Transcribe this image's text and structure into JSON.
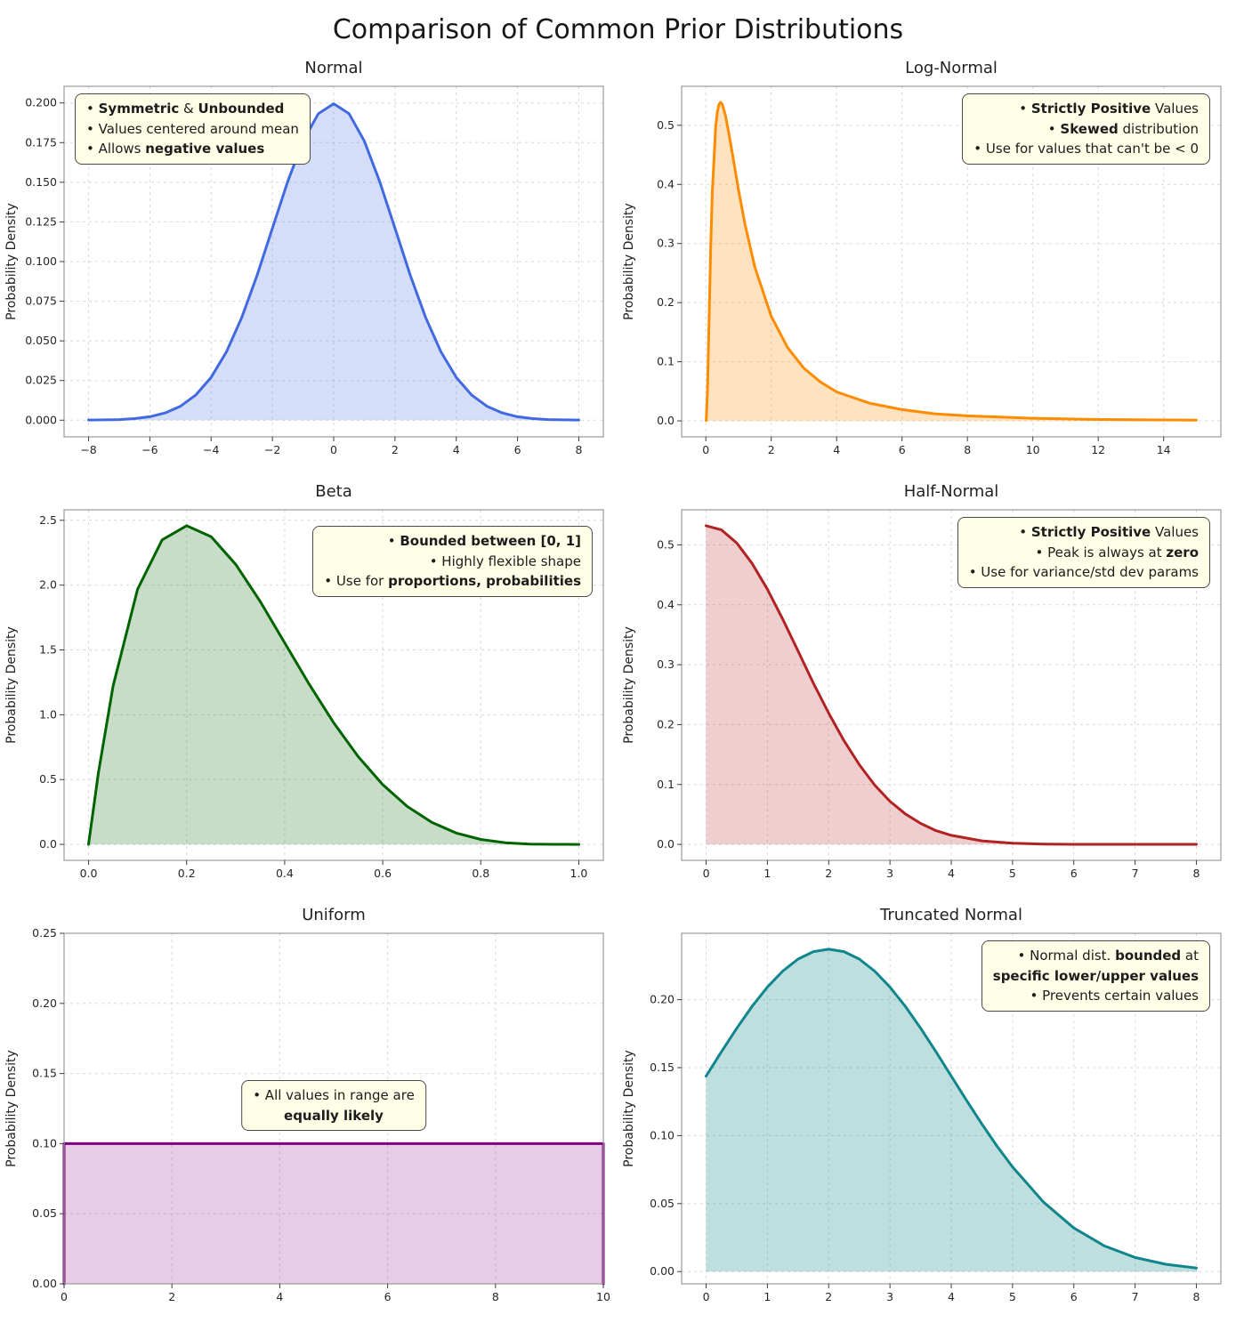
{
  "page": {
    "title": "Comparison of Common Prior Distributions"
  },
  "chart_data": [
    {
      "id": "normal",
      "type": "area",
      "title": "Normal",
      "ylabel": "Probability Density",
      "line_color": "#4169e1",
      "fill_color": "rgba(65,105,225,0.22)",
      "line_width": 3,
      "xlim": [
        -8.8,
        8.8
      ],
      "ylim": [
        -0.0105,
        0.2105
      ],
      "xticks": [
        -8,
        -6,
        -4,
        -2,
        0,
        2,
        4,
        6,
        8
      ],
      "xtick_labels": [
        "−8",
        "−6",
        "−4",
        "−2",
        "0",
        "2",
        "4",
        "6",
        "8"
      ],
      "yticks": [
        0,
        0.025,
        0.05,
        0.075,
        0.1,
        0.125,
        0.15,
        0.175,
        0.2
      ],
      "ytick_labels": [
        "0.000",
        "0.025",
        "0.050",
        "0.075",
        "0.100",
        "0.125",
        "0.150",
        "0.175",
        "0.200"
      ],
      "x": [
        -8,
        -7.5,
        -7,
        -6.5,
        -6,
        -5.5,
        -5,
        -4.5,
        -4,
        -3.5,
        -3,
        -2.5,
        -2,
        -1.5,
        -1,
        -0.5,
        0,
        0.5,
        1,
        1.5,
        2,
        2.5,
        3,
        3.5,
        4,
        4.5,
        5,
        5.5,
        6,
        6.5,
        7,
        7.5,
        8
      ],
      "y": [
        0.0001,
        0.0002,
        0.0004,
        0.001,
        0.0022,
        0.0046,
        0.0088,
        0.0159,
        0.027,
        0.0431,
        0.0648,
        0.0913,
        0.121,
        0.1506,
        0.176,
        0.1933,
        0.1995,
        0.1933,
        0.176,
        0.1506,
        0.121,
        0.0913,
        0.0648,
        0.0431,
        0.027,
        0.0159,
        0.0088,
        0.0046,
        0.0022,
        0.001,
        0.0004,
        0.0002,
        0.0001
      ],
      "annotation": {
        "pos": "top-left",
        "align": "left",
        "lines": [
          [
            {
              "t": "• "
            },
            {
              "t": "Symmetric",
              "b": true
            },
            {
              "t": " & "
            },
            {
              "t": "Unbounded",
              "b": true
            }
          ],
          [
            {
              "t": "• Values centered around mean"
            }
          ],
          [
            {
              "t": "• Allows "
            },
            {
              "t": "negative values",
              "b": true
            }
          ]
        ]
      }
    },
    {
      "id": "lognormal",
      "type": "area",
      "title": "Log-Normal",
      "ylabel": "Probability Density",
      "line_color": "#ff8c00",
      "fill_color": "rgba(255,140,0,0.25)",
      "line_width": 3,
      "xlim": [
        -0.74,
        15.75
      ],
      "ylim": [
        -0.027,
        0.566
      ],
      "xticks": [
        0,
        2,
        4,
        6,
        8,
        10,
        12,
        14
      ],
      "xtick_labels": [
        "0",
        "2",
        "4",
        "6",
        "8",
        "10",
        "12",
        "14"
      ],
      "yticks": [
        0,
        0.1,
        0.2,
        0.3,
        0.4,
        0.5
      ],
      "ytick_labels": [
        "0.0",
        "0.1",
        "0.2",
        "0.3",
        "0.4",
        "0.5"
      ],
      "x": [
        0.01,
        0.05,
        0.1,
        0.15,
        0.2,
        0.3,
        0.35,
        0.4,
        0.45,
        0.5,
        0.6,
        0.7,
        0.8,
        1,
        1.2,
        1.5,
        2,
        2.5,
        3,
        3.5,
        4,
        5,
        6,
        7,
        8,
        10,
        12,
        15
      ],
      "y": [
        0.0006,
        0.048,
        0.174,
        0.295,
        0.388,
        0.496,
        0.522,
        0.535,
        0.539,
        0.536,
        0.517,
        0.488,
        0.456,
        0.391,
        0.332,
        0.26,
        0.177,
        0.124,
        0.089,
        0.066,
        0.049,
        0.03,
        0.019,
        0.012,
        0.0085,
        0.0044,
        0.0024,
        0.0012
      ],
      "annotation": {
        "pos": "top-right",
        "align": "right",
        "lines": [
          [
            {
              "t": "• "
            },
            {
              "t": "Strictly Positive",
              "b": true
            },
            {
              "t": " Values"
            }
          ],
          [
            {
              "t": "• "
            },
            {
              "t": "Skewed",
              "b": true
            },
            {
              "t": " distribution"
            }
          ],
          [
            {
              "t": "• Use for values that can't be < 0"
            }
          ]
        ]
      }
    },
    {
      "id": "beta",
      "type": "area",
      "title": "Beta",
      "ylabel": "Probability Density",
      "line_color": "#006400",
      "fill_color": "rgba(0,100,0,0.22)",
      "line_width": 3,
      "xlim": [
        -0.05,
        1.05
      ],
      "ylim": [
        -0.123,
        2.581
      ],
      "xticks": [
        0,
        0.2,
        0.4,
        0.6,
        0.8,
        1
      ],
      "xtick_labels": [
        "0.0",
        "0.2",
        "0.4",
        "0.6",
        "0.8",
        "1.0"
      ],
      "yticks": [
        0,
        0.5,
        1,
        1.5,
        2,
        2.5
      ],
      "ytick_labels": [
        "0.0",
        "0.5",
        "1.0",
        "1.5",
        "2.0",
        "2.5"
      ],
      "x": [
        0,
        0.02,
        0.05,
        0.1,
        0.15,
        0.2,
        0.25,
        0.3,
        0.35,
        0.4,
        0.45,
        0.5,
        0.55,
        0.6,
        0.65,
        0.7,
        0.75,
        0.8,
        0.85,
        0.9,
        0.95,
        1
      ],
      "y": [
        0,
        0.553,
        1.222,
        1.968,
        2.349,
        2.458,
        2.373,
        2.161,
        1.874,
        1.555,
        1.235,
        0.938,
        0.677,
        0.461,
        0.293,
        0.17,
        0.088,
        0.038,
        0.013,
        0.0027,
        0.0002,
        0
      ],
      "annotation": {
        "pos": "top-right",
        "align": "right",
        "dy": 10,
        "lines": [
          [
            {
              "t": "• "
            },
            {
              "t": "Bounded between [0, 1]",
              "b": true
            }
          ],
          [
            {
              "t": "• Highly flexible shape"
            }
          ],
          [
            {
              "t": "• Use for "
            },
            {
              "t": "proportions, probabilities",
              "b": true
            }
          ]
        ]
      }
    },
    {
      "id": "halfnormal",
      "type": "area",
      "title": "Half-Normal",
      "ylabel": "Probability Density",
      "line_color": "#b22222",
      "fill_color": "rgba(178,34,34,0.22)",
      "line_width": 3,
      "xlim": [
        -0.4,
        8.4
      ],
      "ylim": [
        -0.0266,
        0.5586
      ],
      "xticks": [
        0,
        1,
        2,
        3,
        4,
        5,
        6,
        7,
        8
      ],
      "xtick_labels": [
        "0",
        "1",
        "2",
        "3",
        "4",
        "5",
        "6",
        "7",
        "8"
      ],
      "yticks": [
        0,
        0.1,
        0.2,
        0.3,
        0.4,
        0.5
      ],
      "ytick_labels": [
        "0.0",
        "0.1",
        "0.2",
        "0.3",
        "0.4",
        "0.5"
      ],
      "x": [
        0,
        0.25,
        0.5,
        0.75,
        1,
        1.25,
        1.5,
        1.75,
        2,
        2.25,
        2.5,
        2.75,
        3,
        3.25,
        3.5,
        3.75,
        4,
        4.5,
        5,
        5.5,
        6,
        6.5,
        7,
        7.5,
        8
      ],
      "y": [
        0.532,
        0.525,
        0.503,
        0.469,
        0.426,
        0.376,
        0.323,
        0.269,
        0.219,
        0.173,
        0.133,
        0.099,
        0.072,
        0.051,
        0.035,
        0.023,
        0.0152,
        0.0059,
        0.0021,
        0.0006,
        0.0002,
        0.0001,
        0.0001,
        0.0001,
        0.0001
      ],
      "annotation": {
        "pos": "top-right",
        "align": "right",
        "lines": [
          [
            {
              "t": "• "
            },
            {
              "t": "Strictly Positive",
              "b": true
            },
            {
              "t": " Values"
            }
          ],
          [
            {
              "t": "• Peak is always at "
            },
            {
              "t": "zero",
              "b": true
            }
          ],
          [
            {
              "t": "• Use for variance/std dev params"
            }
          ]
        ]
      }
    },
    {
      "id": "uniform",
      "type": "area",
      "title": "Uniform",
      "ylabel": "Probability Density",
      "line_color": "#800080",
      "fill_color": "rgba(128,0,128,0.2)",
      "line_width": 3,
      "edge_to_zero": true,
      "xlim": [
        0,
        10
      ],
      "ylim": [
        0,
        0.25
      ],
      "xticks": [
        0,
        2,
        4,
        6,
        8,
        10
      ],
      "xtick_labels": [
        "0",
        "2",
        "4",
        "6",
        "8",
        "10"
      ],
      "yticks": [
        0,
        0.05,
        0.1,
        0.15,
        0.2,
        0.25
      ],
      "ytick_labels": [
        "0.00",
        "0.05",
        "0.10",
        "0.15",
        "0.20",
        "0.25"
      ],
      "x": [
        0,
        10
      ],
      "y": [
        0.1,
        0.1
      ],
      "annotation": {
        "pos": "center",
        "align": "center",
        "lines": [
          [
            {
              "t": "• All values in range are"
            }
          ],
          [
            {
              "t": "equally likely",
              "b": true
            }
          ]
        ]
      }
    },
    {
      "id": "truncnormal",
      "type": "area",
      "title": "Truncated Normal",
      "ylabel": "Probability Density",
      "line_color": "#0e868b",
      "fill_color": "rgba(0,128,128,0.25)",
      "line_width": 3,
      "xlim": [
        -0.4,
        8.4
      ],
      "ylim": [
        -0.009,
        0.2488
      ],
      "xticks": [
        0,
        1,
        2,
        3,
        4,
        5,
        6,
        7,
        8
      ],
      "xtick_labels": [
        "0",
        "1",
        "2",
        "3",
        "4",
        "5",
        "6",
        "7",
        "8"
      ],
      "yticks": [
        0,
        0.05,
        0.1,
        0.15,
        0.2
      ],
      "ytick_labels": [
        "0.00",
        "0.05",
        "0.10",
        "0.15",
        "0.20"
      ],
      "x": [
        0,
        0.25,
        0.5,
        0.75,
        1,
        1.25,
        1.5,
        1.75,
        2,
        2.25,
        2.5,
        2.75,
        3,
        3.25,
        3.5,
        3.75,
        4,
        4.25,
        4.5,
        4.75,
        5,
        5.5,
        6,
        6.5,
        7,
        7.5,
        8
      ],
      "y": [
        0.1438,
        0.1617,
        0.179,
        0.1951,
        0.2093,
        0.221,
        0.2298,
        0.2353,
        0.2371,
        0.2353,
        0.2298,
        0.221,
        0.2093,
        0.1951,
        0.179,
        0.1617,
        0.1438,
        0.1259,
        0.1086,
        0.0921,
        0.077,
        0.0513,
        0.0321,
        0.0189,
        0.0104,
        0.0054,
        0.0026
      ],
      "annotation": {
        "pos": "top-right",
        "align": "right",
        "lines": [
          [
            {
              "t": "• Normal dist. "
            },
            {
              "t": "bounded",
              "b": true
            },
            {
              "t": " at"
            }
          ],
          [
            {
              "t": "specific lower/upper values",
              "b": true
            }
          ],
          [
            {
              "t": "• Prevents certain values"
            }
          ]
        ]
      }
    }
  ]
}
